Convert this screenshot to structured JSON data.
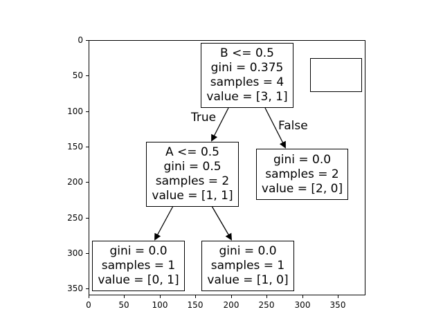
{
  "axes": {
    "y_ticks": [
      "0",
      "50",
      "100",
      "150",
      "200",
      "250",
      "300",
      "350"
    ],
    "x_ticks": [
      "0",
      "50",
      "100",
      "150",
      "200",
      "250",
      "300",
      "350"
    ]
  },
  "tree": {
    "root": {
      "lines": [
        "B <= 0.5",
        "gini = 0.375",
        "samples = 4",
        "value = [3, 1]"
      ]
    },
    "left": {
      "lines": [
        "A <= 0.5",
        "gini = 0.5",
        "samples = 2",
        "value = [1, 1]"
      ]
    },
    "right": {
      "lines": [
        "gini = 0.0",
        "samples = 2",
        "value = [2, 0]"
      ]
    },
    "left_left": {
      "lines": [
        "gini = 0.0",
        "samples = 1",
        "value = [0, 1]"
      ]
    },
    "left_right": {
      "lines": [
        "gini = 0.0",
        "samples = 1",
        "value = [1, 0]"
      ]
    },
    "edge_true_label": "True",
    "edge_false_label": "False"
  }
}
